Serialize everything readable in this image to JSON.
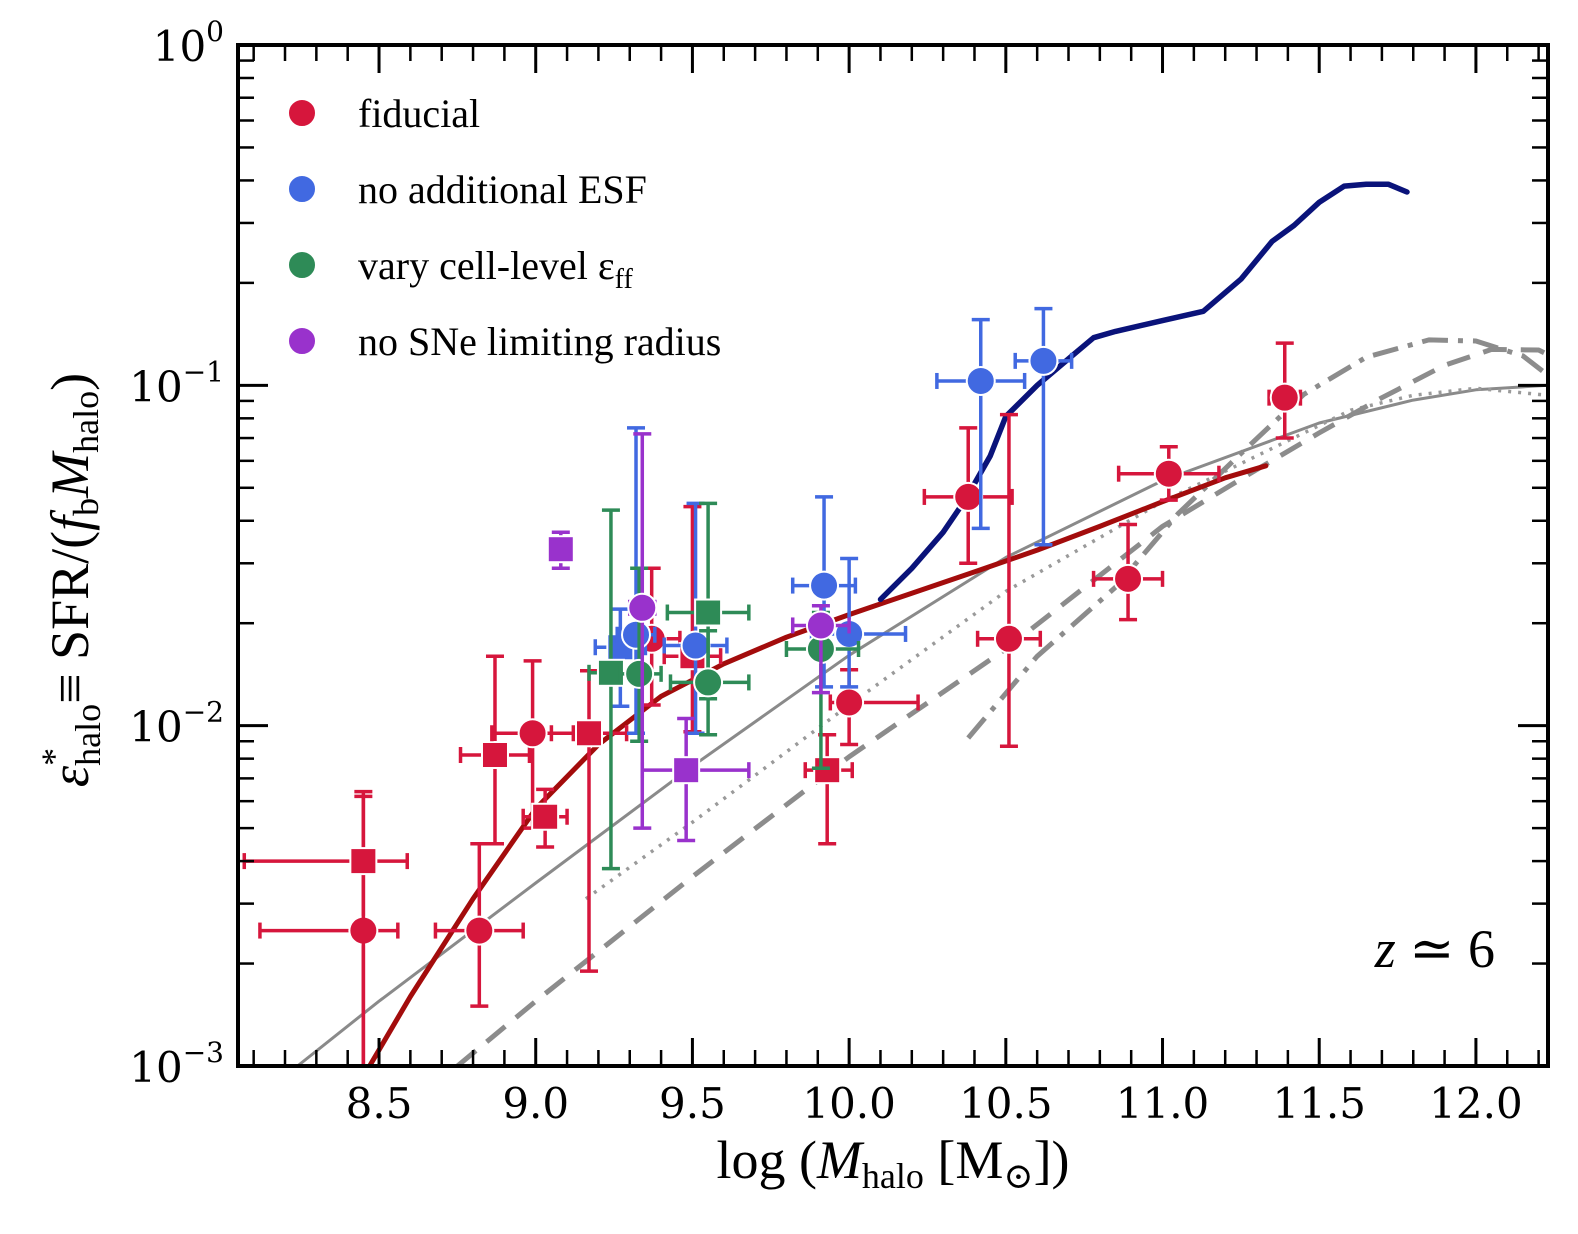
{
  "chart_data": {
    "type": "scatter",
    "title": "",
    "xlabel": "log (M_halo [M_sun])",
    "xlabel_parts": {
      "prefix": "log (",
      "var": "M",
      "sub": "halo",
      "unit": " [M",
      "close": "])"
    },
    "ylabel_parts": {
      "eps": "ε",
      "sup": "*",
      "sub": "halo",
      "eq": "≡ SFR/(",
      "fb": "f",
      "fb_sub": "b",
      "mdot": "M",
      "mdot_sub": "halo",
      "close": ")"
    },
    "annotation_parts": {
      "var": "z",
      "rel": " ≃ 6"
    },
    "xlim": [
      8.05,
      12.23
    ],
    "ylim_log10": [
      -3,
      0
    ],
    "yscale": "log",
    "x_ticks": [
      8.5,
      9.0,
      9.5,
      10.0,
      10.5,
      11.0,
      11.5,
      12.0
    ],
    "x_tick_labels": [
      "8.5",
      "9.0",
      "9.5",
      "10.0",
      "10.5",
      "11.0",
      "11.5",
      "12.0"
    ],
    "y_ticks": [
      {
        "base": "10",
        "exp": "0",
        "value": 1
      },
      {
        "base": "10",
        "exp": "−1",
        "value": 0.1
      },
      {
        "base": "10",
        "exp": "−2",
        "value": 0.01
      },
      {
        "base": "10",
        "exp": "−3",
        "value": 0.001
      }
    ],
    "legend": [
      {
        "label": "fiducial",
        "color": "#d6163c",
        "sub": ""
      },
      {
        "label": "no additional ESF",
        "color": "#4169e1",
        "sub": ""
      },
      {
        "label": "vary cell-level ε",
        "color": "#2e8b57",
        "sub": "ff"
      },
      {
        "label": "no SNe limiting radius",
        "color": "#9932cc",
        "sub": ""
      }
    ],
    "series": [
      {
        "name": "fiducial",
        "color": "#d6163c",
        "points": [
          {
            "x": 8.45,
            "y": 0.0025,
            "m": "o",
            "xl": 8.12,
            "xh": 8.56,
            "yl": 0.001,
            "yh": 0.0062
          },
          {
            "x": 8.45,
            "y": 0.004,
            "m": "s",
            "xl": 8.07,
            "xh": 8.59,
            "yl": 0.001,
            "yh": 0.0064
          },
          {
            "x": 8.82,
            "y": 0.0025,
            "m": "o",
            "xl": 8.68,
            "xh": 8.96,
            "yl": 0.0015,
            "yh": 0.0045
          },
          {
            "x": 8.87,
            "y": 0.0082,
            "m": "s",
            "xl": 8.76,
            "xh": 8.98,
            "yl": 0.0045,
            "yh": 0.016
          },
          {
            "x": 8.99,
            "y": 0.0095,
            "m": "o",
            "xl": 8.86,
            "xh": 9.12,
            "yl": 0.005,
            "yh": 0.0155
          },
          {
            "x": 9.03,
            "y": 0.0054,
            "m": "s",
            "xl": 8.96,
            "xh": 9.1,
            "yl": 0.0044,
            "yh": 0.0065
          },
          {
            "x": 9.17,
            "y": 0.0095,
            "m": "s",
            "xl": 9.05,
            "xh": 9.29,
            "yl": 0.0019,
            "yh": 0.0145
          },
          {
            "x": 9.37,
            "y": 0.018,
            "m": "o",
            "xl": 9.28,
            "xh": 9.46,
            "yl": 0.0115,
            "yh": 0.029
          },
          {
            "x": 9.5,
            "y": 0.016,
            "m": "s",
            "xl": 9.41,
            "xh": 9.59,
            "yl": 0.0096,
            "yh": 0.044
          },
          {
            "x": 9.93,
            "y": 0.0074,
            "m": "s",
            "xl": 9.86,
            "xh": 10.01,
            "yl": 0.0045,
            "yh": 0.0094
          },
          {
            "x": 10.0,
            "y": 0.0117,
            "m": "o",
            "xl": 9.94,
            "xh": 10.22,
            "yl": 0.0088,
            "yh": 0.0146
          },
          {
            "x": 10.38,
            "y": 0.047,
            "m": "o",
            "xl": 10.24,
            "xh": 10.52,
            "yl": 0.03,
            "yh": 0.075
          },
          {
            "x": 10.51,
            "y": 0.018,
            "m": "o",
            "xl": 10.41,
            "xh": 10.61,
            "yl": 0.0087,
            "yh": 0.082
          },
          {
            "x": 10.89,
            "y": 0.027,
            "m": "o",
            "xl": 10.78,
            "xh": 11.0,
            "yl": 0.0205,
            "yh": 0.039
          },
          {
            "x": 11.02,
            "y": 0.055,
            "m": "o",
            "xl": 10.86,
            "xh": 11.18,
            "yl": 0.046,
            "yh": 0.066
          },
          {
            "x": 11.39,
            "y": 0.092,
            "m": "o",
            "xl": 11.34,
            "xh": 11.44,
            "yl": 0.07,
            "yh": 0.133
          }
        ]
      },
      {
        "name": "no additional ESF",
        "color": "#4169e1",
        "points": [
          {
            "x": 9.27,
            "y": 0.017,
            "m": "s",
            "xl": 9.19,
            "xh": 9.35,
            "yl": 0.0114,
            "yh": 0.022
          },
          {
            "x": 9.32,
            "y": 0.0185,
            "m": "o",
            "xl": 9.26,
            "xh": 9.38,
            "yl": 0.0095,
            "yh": 0.075
          },
          {
            "x": 9.51,
            "y": 0.0172,
            "m": "o",
            "xl": 9.41,
            "xh": 9.61,
            "yl": 0.0095,
            "yh": 0.045
          },
          {
            "x": 9.92,
            "y": 0.0258,
            "m": "o",
            "xl": 9.82,
            "xh": 10.02,
            "yl": 0.013,
            "yh": 0.047
          },
          {
            "x": 10.0,
            "y": 0.0186,
            "m": "o",
            "xl": 9.88,
            "xh": 10.18,
            "yl": 0.013,
            "yh": 0.031
          },
          {
            "x": 10.42,
            "y": 0.103,
            "m": "o",
            "xl": 10.28,
            "xh": 10.56,
            "yl": 0.038,
            "yh": 0.156
          },
          {
            "x": 10.62,
            "y": 0.118,
            "m": "o",
            "xl": 10.53,
            "xh": 10.71,
            "yl": 0.034,
            "yh": 0.168
          }
        ]
      },
      {
        "name": "vary cell-level eff",
        "color": "#2e8b57",
        "points": [
          {
            "x": 9.24,
            "y": 0.0143,
            "m": "s",
            "xl": 9.17,
            "xh": 9.32,
            "yl": 0.0038,
            "yh": 0.043
          },
          {
            "x": 9.33,
            "y": 0.0142,
            "m": "o",
            "xl": 9.26,
            "xh": 9.4,
            "yl": 0.009,
            "yh": 0.029
          },
          {
            "x": 9.55,
            "y": 0.0215,
            "m": "s",
            "xl": 9.42,
            "xh": 9.68,
            "yl": 0.012,
            "yh": 0.045
          },
          {
            "x": 9.55,
            "y": 0.0134,
            "m": "o",
            "xl": 9.43,
            "xh": 9.68,
            "yl": 0.0094,
            "yh": 0.019
          },
          {
            "x": 9.91,
            "y": 0.0168,
            "m": "o",
            "xl": 9.8,
            "xh": 10.03,
            "yl": 0.0075,
            "yh": 0.0215
          }
        ]
      },
      {
        "name": "no SNe limiting radius",
        "color": "#9932cc",
        "points": [
          {
            "x": 9.08,
            "y": 0.033,
            "m": "s",
            "xl": 9.08,
            "xh": 9.08,
            "yl": 0.029,
            "yh": 0.037
          },
          {
            "x": 9.34,
            "y": 0.0222,
            "m": "o",
            "xl": 9.3,
            "xh": 9.38,
            "yl": 0.005,
            "yh": 0.072
          },
          {
            "x": 9.48,
            "y": 0.0074,
            "m": "s",
            "xl": 9.34,
            "xh": 9.68,
            "yl": 0.0046,
            "yh": 0.0105
          },
          {
            "x": 9.91,
            "y": 0.0197,
            "m": "o",
            "xl": 9.82,
            "xh": 10.0,
            "yl": 0.0125,
            "yh": 0.0225
          }
        ]
      }
    ],
    "lines": [
      {
        "name": "fiducial-fit",
        "color": "#a30c0c",
        "width": 5,
        "dash": "",
        "points": [
          [
            8.47,
            0.001
          ],
          [
            8.6,
            0.0016
          ],
          [
            8.8,
            0.0031
          ],
          [
            9.0,
            0.0057
          ],
          [
            9.2,
            0.0088
          ],
          [
            9.4,
            0.0122
          ],
          [
            9.6,
            0.0152
          ],
          [
            9.8,
            0.0182
          ],
          [
            10.0,
            0.0212
          ],
          [
            10.2,
            0.0245
          ],
          [
            10.4,
            0.0283
          ],
          [
            10.6,
            0.0328
          ],
          [
            10.8,
            0.0385
          ],
          [
            11.0,
            0.0455
          ],
          [
            11.2,
            0.0535
          ],
          [
            11.33,
            0.058
          ]
        ]
      },
      {
        "name": "no-ESF-curve",
        "color": "#0a137a",
        "width": 5.5,
        "dash": "",
        "points": [
          [
            10.1,
            0.0235
          ],
          [
            10.2,
            0.029
          ],
          [
            10.3,
            0.037
          ],
          [
            10.37,
            0.046
          ],
          [
            10.45,
            0.062
          ],
          [
            10.5,
            0.081
          ],
          [
            10.6,
            0.1
          ],
          [
            10.72,
            0.124
          ],
          [
            10.78,
            0.138
          ],
          [
            10.85,
            0.144
          ],
          [
            11.0,
            0.155
          ],
          [
            11.13,
            0.165
          ],
          [
            11.25,
            0.205
          ],
          [
            11.35,
            0.265
          ],
          [
            11.42,
            0.295
          ],
          [
            11.5,
            0.345
          ],
          [
            11.58,
            0.385
          ],
          [
            11.65,
            0.39
          ],
          [
            11.72,
            0.39
          ],
          [
            11.78,
            0.37
          ]
        ]
      },
      {
        "name": "gray-solid",
        "color": "#8a8a8a",
        "width": 3,
        "dash": "",
        "points": [
          [
            8.24,
            0.001
          ],
          [
            8.5,
            0.00155
          ],
          [
            9.0,
            0.00345
          ],
          [
            9.5,
            0.0076
          ],
          [
            10.0,
            0.0161
          ],
          [
            10.5,
            0.0312
          ],
          [
            11.0,
            0.0525
          ],
          [
            11.5,
            0.0775
          ],
          [
            11.8,
            0.0905
          ],
          [
            12.0,
            0.097
          ],
          [
            12.23,
            0.1
          ]
        ]
      },
      {
        "name": "gray-dotted",
        "color": "#9a9a9a",
        "width": 3.5,
        "dash": "3 7",
        "points": [
          [
            9.16,
            0.0031
          ],
          [
            9.5,
            0.0052
          ],
          [
            10.0,
            0.0115
          ],
          [
            10.5,
            0.0248
          ],
          [
            11.0,
            0.0455
          ],
          [
            11.3,
            0.062
          ],
          [
            11.6,
            0.0845
          ],
          [
            11.8,
            0.0935
          ],
          [
            12.0,
            0.098
          ],
          [
            12.23,
            0.0935
          ]
        ]
      },
      {
        "name": "gray-dashed",
        "color": "#8c8c8c",
        "width": 5,
        "dash": "24 14",
        "points": [
          [
            8.75,
            0.001
          ],
          [
            9.0,
            0.00155
          ],
          [
            9.5,
            0.0036
          ],
          [
            10.0,
            0.0081
          ],
          [
            10.5,
            0.0168
          ],
          [
            11.0,
            0.0385
          ],
          [
            11.3,
            0.0565
          ],
          [
            11.5,
            0.0725
          ],
          [
            11.7,
            0.092
          ],
          [
            11.9,
            0.1145
          ],
          [
            12.05,
            0.1275
          ],
          [
            12.2,
            0.127
          ],
          [
            12.23,
            0.123
          ]
        ]
      },
      {
        "name": "gray-dashdot",
        "color": "#8c8c8c",
        "width": 5,
        "dash": "26 10 5 10",
        "points": [
          [
            10.38,
            0.0092
          ],
          [
            10.6,
            0.016
          ],
          [
            10.85,
            0.0255
          ],
          [
            11.05,
            0.042
          ],
          [
            11.25,
            0.063
          ],
          [
            11.45,
            0.094
          ],
          [
            11.65,
            0.121
          ],
          [
            11.85,
            0.136
          ],
          [
            12.0,
            0.135
          ],
          [
            12.15,
            0.122
          ],
          [
            12.23,
            0.107
          ]
        ]
      }
    ]
  }
}
